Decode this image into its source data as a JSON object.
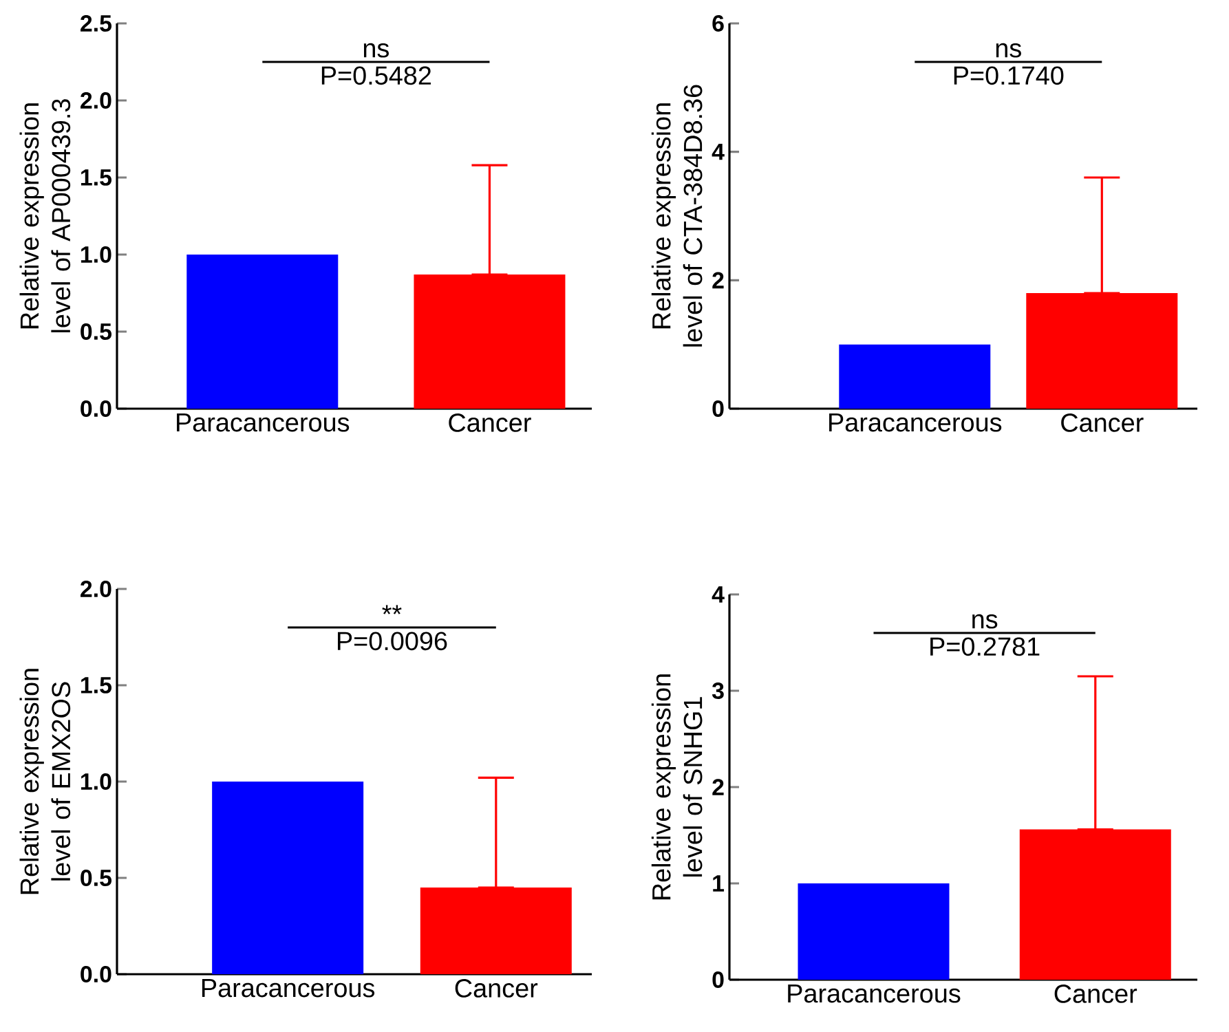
{
  "chart_data": [
    {
      "type": "bar",
      "ylabel": "Relative expression level of AP000439.3",
      "categories": [
        "Paracancerous",
        "Cancer"
      ],
      "values": [
        1.0,
        0.87
      ],
      "colors": [
        "#0000ff",
        "#ff0000"
      ],
      "errors": [
        null,
        [
          0.87,
          1.58
        ]
      ],
      "ylim": [
        0,
        2.5
      ],
      "yticks": [
        {
          "value": 0,
          "label": "0.0"
        },
        {
          "value": 0.5,
          "label": "0.5"
        },
        {
          "value": 1,
          "label": "1.0"
        },
        {
          "value": 1.5,
          "label": "1.5"
        },
        {
          "value": 2,
          "label": "2.0"
        },
        {
          "value": 2.5,
          "label": "2.5"
        }
      ],
      "annotations": [
        "ns",
        "P=0.5482"
      ]
    },
    {
      "type": "bar",
      "ylabel": "Relative expression level of CTA-384D8.36",
      "categories": [
        "Paracancerous",
        "Cancer"
      ],
      "values": [
        1.0,
        1.8
      ],
      "colors": [
        "#0000ff",
        "#ff0000"
      ],
      "errors": [
        null,
        [
          1.8,
          3.6
        ]
      ],
      "ylim": [
        0,
        6
      ],
      "yticks": [
        0,
        2,
        4,
        6
      ],
      "annotations": [
        "ns",
        "P=0.1740"
      ]
    },
    {
      "type": "bar",
      "ylabel": "Relative expression level of EMX2OS",
      "categories": [
        "Paracancerous",
        "Cancer"
      ],
      "values": [
        1.0,
        0.45
      ],
      "colors": [
        "#0000ff",
        "#ff0000"
      ],
      "errors": [
        null,
        [
          0.45,
          1.02
        ]
      ],
      "ylim": [
        0,
        2
      ],
      "yticks": [
        {
          "value": 0,
          "label": "0.0"
        },
        {
          "value": 0.5,
          "label": "0.5"
        },
        {
          "value": 1,
          "label": "1.0"
        },
        {
          "value": 1.5,
          "label": "1.5"
        },
        {
          "value": 2,
          "label": "2.0"
        }
      ],
      "annotations": [
        "**",
        "P=0.0096"
      ]
    },
    {
      "type": "bar",
      "ylabel": "Relative expression level of SNHG1",
      "categories": [
        "Paracancerous",
        "Cancer"
      ],
      "values": [
        1.0,
        1.56
      ],
      "colors": [
        "#0000ff",
        "#ff0000"
      ],
      "errors": [
        null,
        [
          1.56,
          3.15
        ]
      ],
      "ylim": [
        0,
        4
      ],
      "yticks": [
        0,
        1,
        2,
        3,
        4
      ],
      "annotations": [
        "ns",
        "P=0.2781"
      ]
    }
  ]
}
